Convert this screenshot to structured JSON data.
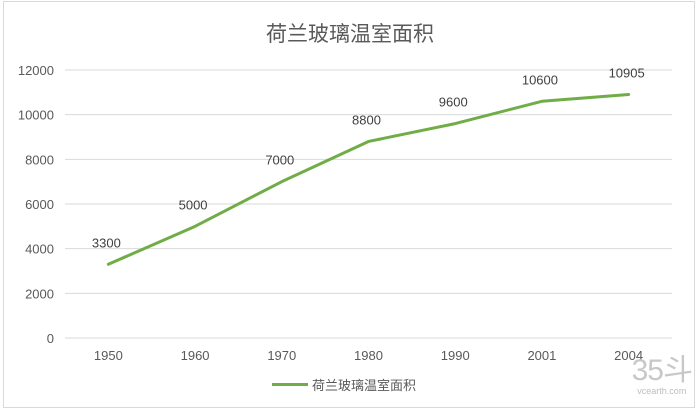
{
  "chart_data": {
    "type": "line",
    "title": "荷兰玻璃温室面积",
    "categories": [
      "1950",
      "1960",
      "1970",
      "1980",
      "1990",
      "2001",
      "2004"
    ],
    "series": [
      {
        "name": "荷兰玻璃温室面积",
        "values": [
          3300,
          5000,
          7000,
          8800,
          9600,
          10600,
          10905
        ],
        "color": "#70ad47"
      }
    ],
    "data_labels": [
      "3300",
      "5000",
      "7000",
      "8800",
      "9600",
      "10600",
      "10905"
    ],
    "xlabel": "",
    "ylabel": "",
    "ylim": [
      0,
      12000
    ],
    "yticks": [
      "0",
      "2000",
      "4000",
      "6000",
      "8000",
      "10000",
      "12000"
    ],
    "grid": true,
    "legend_position": "bottom"
  },
  "legend": {
    "label": "荷兰玻璃温室面积"
  },
  "watermark": {
    "logo": "35斗",
    "site": "vcearth.com"
  }
}
